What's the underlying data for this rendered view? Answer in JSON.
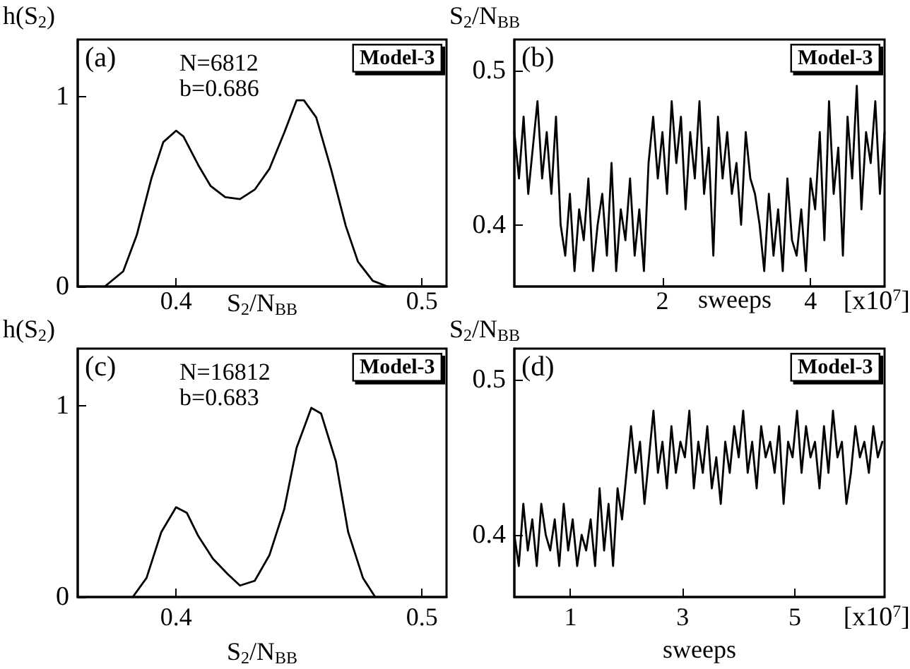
{
  "chart_data": [
    {
      "type": "line",
      "xlabel": "S$_{2}$/N$_{BB}$",
      "ylabel": "h(S$_{2}$)",
      "annotations": [
        "(a)",
        "Model-3",
        "N=6812",
        "b=0.686"
      ],
      "xlim": [
        0.36,
        0.51
      ],
      "xticks": [
        0.4,
        0.5
      ],
      "ylim": [
        0,
        1.3
      ],
      "yticks": [
        0,
        1
      ],
      "grid": false,
      "marker": "none",
      "line_style": "solid",
      "x": [
        0.371,
        0.3785,
        0.384,
        0.39,
        0.3948,
        0.4,
        0.403,
        0.409,
        0.414,
        0.42,
        0.426,
        0.432,
        0.438,
        0.444,
        0.449,
        0.452,
        0.457,
        0.463,
        0.469,
        0.474,
        0.48,
        0.486
      ],
      "series": [
        {
          "color": "#000000",
          "values": [
            0,
            0.08,
            0.27,
            0.57,
            0.76,
            0.82,
            0.79,
            0.64,
            0.53,
            0.47,
            0.46,
            0.51,
            0.62,
            0.81,
            0.98,
            0.98,
            0.89,
            0.62,
            0.32,
            0.13,
            0.03,
            0
          ]
        }
      ]
    },
    {
      "type": "line",
      "xlabel": "sweeps",
      "ylabel": "S$_{2}$/N$_{BB}$",
      "annotations": [
        "(b)",
        "Model-3",
        "[x10$^{7}$]"
      ],
      "xlim": [
        0,
        5
      ],
      "xticks": [
        2,
        4
      ],
      "ylim": [
        0.36,
        0.52
      ],
      "yticks": [
        0.4,
        0.5
      ],
      "grid": false,
      "marker": "none",
      "line_style": "solid",
      "x": [
        0,
        0.0625,
        0.125,
        0.1875,
        0.25,
        0.3125,
        0.375,
        0.4375,
        0.5,
        0.5625,
        0.625,
        0.6875,
        0.75,
        0.8125,
        0.875,
        0.9375,
        1,
        1.0625,
        1.125,
        1.1875,
        1.25,
        1.3125,
        1.375,
        1.4375,
        1.5,
        1.5625,
        1.625,
        1.6875,
        1.75,
        1.8125,
        1.875,
        1.9375,
        2,
        2.0625,
        2.125,
        2.1875,
        2.25,
        2.3125,
        2.375,
        2.4375,
        2.5,
        2.5625,
        2.625,
        2.6875,
        2.75,
        2.8125,
        2.875,
        2.9375,
        3,
        3.0625,
        3.125,
        3.1875,
        3.25,
        3.3125,
        3.375,
        3.4375,
        3.5,
        3.5625,
        3.625,
        3.6875,
        3.75,
        3.8125,
        3.875,
        3.9375,
        4,
        4.0625,
        4.125,
        4.1875,
        4.25,
        4.3125,
        4.375,
        4.4375,
        4.5,
        4.5625,
        4.625,
        4.6875,
        4.75,
        4.8125,
        4.875,
        4.9375,
        5
      ],
      "series": [
        {
          "color": "#000000",
          "values": [
            0.46,
            0.43,
            0.47,
            0.42,
            0.45,
            0.48,
            0.43,
            0.46,
            0.42,
            0.47,
            0.4,
            0.38,
            0.42,
            0.37,
            0.41,
            0.39,
            0.43,
            0.37,
            0.4,
            0.42,
            0.38,
            0.44,
            0.37,
            0.41,
            0.39,
            0.43,
            0.38,
            0.41,
            0.37,
            0.44,
            0.47,
            0.43,
            0.46,
            0.42,
            0.48,
            0.44,
            0.47,
            0.41,
            0.46,
            0.43,
            0.48,
            0.42,
            0.45,
            0.38,
            0.47,
            0.43,
            0.46,
            0.42,
            0.44,
            0.4,
            0.46,
            0.43,
            0.42,
            0.4,
            0.37,
            0.42,
            0.38,
            0.41,
            0.37,
            0.43,
            0.39,
            0.38,
            0.41,
            0.37,
            0.43,
            0.41,
            0.46,
            0.39,
            0.48,
            0.42,
            0.45,
            0.38,
            0.47,
            0.43,
            0.49,
            0.41,
            0.46,
            0.44,
            0.48,
            0.42,
            0.46
          ]
        }
      ]
    },
    {
      "type": "line",
      "xlabel": "S$_{2}$/N$_{BB}$",
      "ylabel": "h(S$_{2}$)",
      "annotations": [
        "(c)",
        "Model-3",
        "N=16812",
        "b=0.683"
      ],
      "xlim": [
        0.36,
        0.51
      ],
      "xticks": [
        0.4,
        0.5
      ],
      "ylim": [
        0,
        1.3
      ],
      "yticks": [
        0,
        1
      ],
      "grid": false,
      "marker": "none",
      "line_style": "solid",
      "x": [
        0.3824,
        0.388,
        0.394,
        0.4,
        0.4044,
        0.409,
        0.415,
        0.421,
        0.426,
        0.432,
        0.438,
        0.444,
        0.449,
        0.455,
        0.459,
        0.465,
        0.47,
        0.476,
        0.481
      ],
      "series": [
        {
          "color": "#000000",
          "values": [
            0,
            0.1,
            0.34,
            0.47,
            0.44,
            0.32,
            0.2,
            0.12,
            0.06,
            0.085,
            0.22,
            0.46,
            0.78,
            0.99,
            0.96,
            0.71,
            0.34,
            0.1,
            0
          ]
        }
      ]
    },
    {
      "type": "line",
      "xlabel": "sweeps",
      "ylabel": "S$_{2}$/N$_{BB}$",
      "annotations": [
        "(d)",
        "Model-3",
        "[x10$^{7}$]"
      ],
      "xlim": [
        0,
        6.6
      ],
      "xticks": [
        1,
        3,
        5
      ],
      "ylim": [
        0.36,
        0.52
      ],
      "yticks": [
        0.4,
        0.5
      ],
      "grid": false,
      "marker": "none",
      "line_style": "solid",
      "x": [
        0,
        0.08,
        0.16,
        0.24,
        0.32,
        0.4,
        0.48,
        0.56,
        0.64,
        0.72,
        0.8,
        0.88,
        0.96,
        1.04,
        1.12,
        1.2,
        1.28,
        1.36,
        1.44,
        1.52,
        1.6,
        1.68,
        1.76,
        1.84,
        1.92,
        2,
        2.08,
        2.16,
        2.24,
        2.32,
        2.4,
        2.48,
        2.56,
        2.64,
        2.72,
        2.8,
        2.88,
        2.96,
        3.04,
        3.12,
        3.2,
        3.28,
        3.36,
        3.44,
        3.52,
        3.6,
        3.68,
        3.76,
        3.84,
        3.92,
        4,
        4.08,
        4.16,
        4.24,
        4.32,
        4.4,
        4.48,
        4.56,
        4.64,
        4.72,
        4.8,
        4.88,
        4.96,
        5.04,
        5.12,
        5.2,
        5.28,
        5.36,
        5.44,
        5.52,
        5.6,
        5.68,
        5.76,
        5.84,
        5.92,
        6,
        6.08,
        6.16,
        6.24,
        6.32,
        6.4,
        6.48,
        6.56
      ],
      "series": [
        {
          "color": "#000000",
          "values": [
            0.4,
            0.38,
            0.42,
            0.39,
            0.41,
            0.38,
            0.42,
            0.4,
            0.39,
            0.41,
            0.38,
            0.42,
            0.39,
            0.41,
            0.38,
            0.4,
            0.39,
            0.41,
            0.38,
            0.43,
            0.39,
            0.42,
            0.38,
            0.43,
            0.41,
            0.44,
            0.47,
            0.44,
            0.46,
            0.42,
            0.45,
            0.48,
            0.44,
            0.46,
            0.43,
            0.47,
            0.44,
            0.46,
            0.45,
            0.48,
            0.43,
            0.46,
            0.44,
            0.47,
            0.43,
            0.45,
            0.42,
            0.46,
            0.44,
            0.47,
            0.45,
            0.48,
            0.44,
            0.46,
            0.43,
            0.47,
            0.45,
            0.46,
            0.44,
            0.47,
            0.42,
            0.46,
            0.45,
            0.48,
            0.44,
            0.47,
            0.45,
            0.46,
            0.43,
            0.47,
            0.44,
            0.48,
            0.45,
            0.46,
            0.42,
            0.44,
            0.47,
            0.45,
            0.46,
            0.44,
            0.47,
            0.45,
            0.46
          ]
        }
      ]
    }
  ]
}
